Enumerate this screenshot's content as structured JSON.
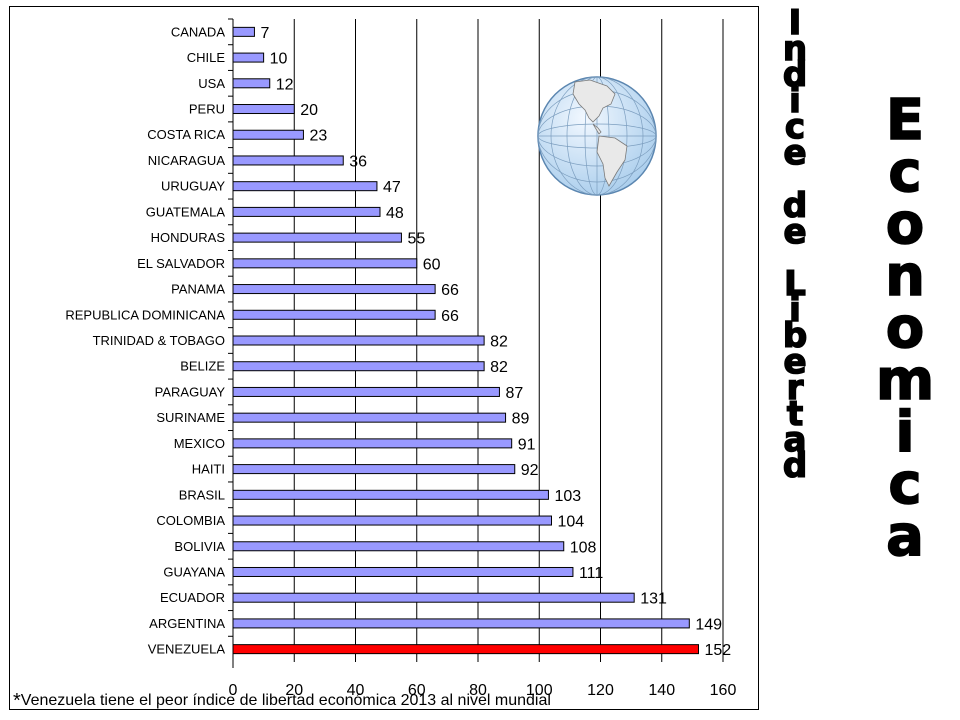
{
  "chart_data": {
    "type": "bar",
    "orientation": "horizontal",
    "categories": [
      "CANADA",
      "CHILE",
      "USA",
      "PERU",
      "COSTA RICA",
      "NICARAGUA",
      "URUGUAY",
      "GUATEMALA",
      "HONDURAS",
      "EL SALVADOR",
      "PANAMA",
      "REPUBLICA DOMINICANA",
      "TRINIDAD & TOBAGO",
      "BELIZE",
      "PARAGUAY",
      "SURINAME",
      "MEXICO",
      "HAITI",
      "BRASIL",
      "COLOMBIA",
      "BOLIVIA",
      "GUAYANA",
      "ECUADOR",
      "ARGENTINA",
      "VENEZUELA"
    ],
    "values": [
      7,
      10,
      12,
      20,
      23,
      36,
      47,
      48,
      55,
      60,
      66,
      66,
      82,
      82,
      87,
      89,
      91,
      92,
      103,
      104,
      108,
      111,
      131,
      149,
      152
    ],
    "highlight_index": 24,
    "colors": {
      "bar": "#9999ff",
      "highlight": "#ff0000",
      "grid": "#000000"
    },
    "xlim": [
      0,
      160
    ],
    "xticks": [
      0,
      20,
      40,
      60,
      80,
      100,
      120,
      140,
      160
    ],
    "xlabel": "",
    "ylabel": "",
    "grid": true
  },
  "title": {
    "line1": [
      "I",
      "n",
      "d",
      "i",
      "c",
      "e",
      "d",
      "e",
      "L",
      "i",
      "b",
      "e",
      "r",
      "t",
      "a",
      "d"
    ],
    "line1_gaps_after": [
      5,
      7
    ],
    "line2": [
      "E",
      "c",
      "o",
      "n",
      "o",
      "m",
      "i",
      "c",
      "a"
    ]
  },
  "footnote": {
    "star": "*",
    "text": "Venezuela tiene el peor índice de libertad económica 2013 al nivel mundial"
  },
  "icons": {
    "globe": "globe-americas-icon"
  }
}
